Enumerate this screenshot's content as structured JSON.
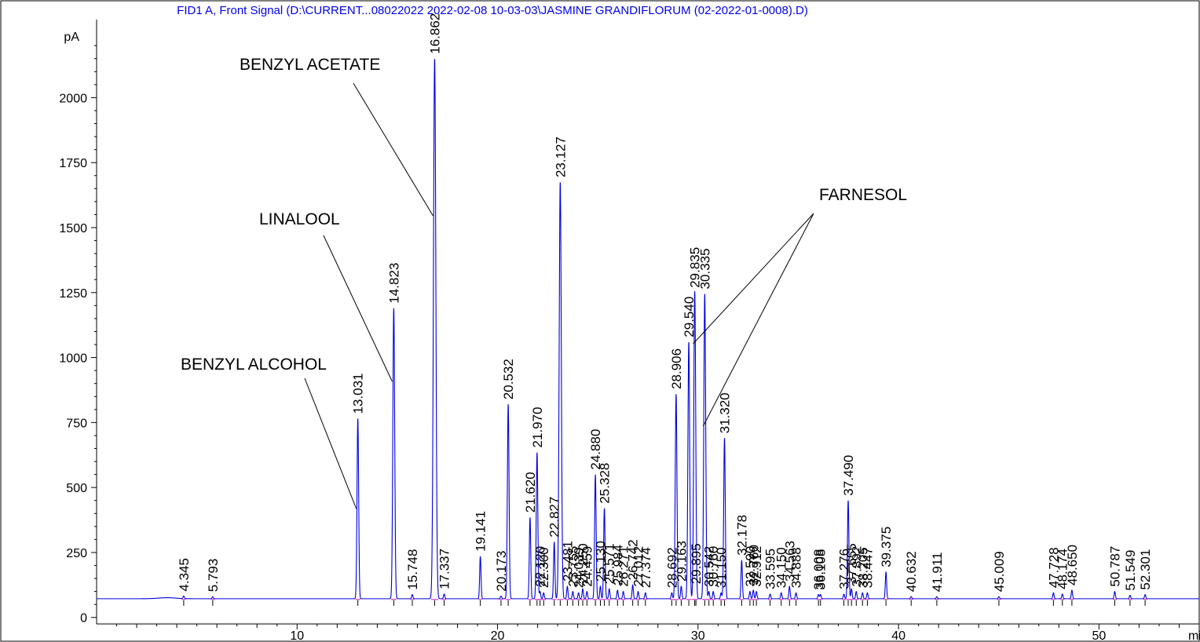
{
  "chart_data": {
    "type": "line",
    "title": "FID1 A, Front Signal (D:\\CURRENT...08022022 2022-02-08 10-03-03\\JASMINE GRANDIFLORUM (02-2022-01-0008).D)",
    "xlabel": "min",
    "ylabel": "pA",
    "xlim": [
      0,
      55
    ],
    "ylim": [
      -25,
      2270
    ],
    "x_ticks": [
      10,
      20,
      30,
      40,
      50
    ],
    "y_ticks": [
      0,
      250,
      500,
      750,
      1000,
      1250,
      1500,
      1750,
      2000
    ],
    "baseline": 72,
    "grid": false,
    "series": [
      {
        "peaks": [
          {
            "label": "4.345",
            "rt": 4.345,
            "height": 82
          },
          {
            "label": "5.793",
            "rt": 5.793,
            "height": 80
          },
          {
            "label": "13.031",
            "rt": 13.031,
            "height": 765
          },
          {
            "label": "14.823",
            "rt": 14.823,
            "height": 1190
          },
          {
            "label": "15.748",
            "rt": 15.748,
            "height": 88
          },
          {
            "label": "16.862",
            "rt": 16.862,
            "height": 2150
          },
          {
            "label": "17.337",
            "rt": 17.337,
            "height": 90
          },
          {
            "label": "19.141",
            "rt": 19.141,
            "height": 235
          },
          {
            "label": "20.173",
            "rt": 20.173,
            "height": 82
          },
          {
            "label": "20.532",
            "rt": 20.532,
            "height": 820
          },
          {
            "label": "21.620",
            "rt": 21.62,
            "height": 385
          },
          {
            "label": "21.970",
            "rt": 21.97,
            "height": 635
          },
          {
            "label": "22.120",
            "rt": 22.12,
            "height": 100
          },
          {
            "label": "22.300",
            "rt": 22.3,
            "height": 95
          },
          {
            "label": "22.827",
            "rt": 22.827,
            "height": 290
          },
          {
            "label": "23.127",
            "rt": 23.127,
            "height": 1675
          },
          {
            "label": "23.481",
            "rt": 23.481,
            "height": 120
          },
          {
            "label": "23.755",
            "rt": 23.755,
            "height": 100
          },
          {
            "label": "24.039",
            "rt": 24.039,
            "height": 95
          },
          {
            "label": "24.250",
            "rt": 24.25,
            "height": 110
          },
          {
            "label": "24.459",
            "rt": 24.459,
            "height": 100
          },
          {
            "label": "24.880",
            "rt": 24.88,
            "height": 550
          },
          {
            "label": "25.130",
            "rt": 25.13,
            "height": 120
          },
          {
            "label": "25.328",
            "rt": 25.328,
            "height": 420
          },
          {
            "label": "25.571",
            "rt": 25.571,
            "height": 110
          },
          {
            "label": "25.984",
            "rt": 25.984,
            "height": 105
          },
          {
            "label": "26.271",
            "rt": 26.271,
            "height": 100
          },
          {
            "label": "26.742",
            "rt": 26.742,
            "height": 125
          },
          {
            "label": "27.012",
            "rt": 27.012,
            "height": 100
          },
          {
            "label": "27.374",
            "rt": 27.374,
            "height": 95
          },
          {
            "label": "28.692",
            "rt": 28.692,
            "height": 95
          },
          {
            "label": "28.906",
            "rt": 28.906,
            "height": 860
          },
          {
            "label": "29.163",
            "rt": 29.163,
            "height": 120
          },
          {
            "label": "29.540",
            "rt": 29.54,
            "height": 1060
          },
          {
            "label": "29.835",
            "rt": 29.835,
            "height": 1250
          },
          {
            "label": "29.895",
            "rt": 29.895,
            "height": 110
          },
          {
            "label": "30.335",
            "rt": 30.335,
            "height": 1245
          },
          {
            "label": "30.542",
            "rt": 30.542,
            "height": 100
          },
          {
            "label": "30.760",
            "rt": 30.76,
            "height": 100
          },
          {
            "label": "31.150",
            "rt": 31.15,
            "height": 95
          },
          {
            "label": "31.320",
            "rt": 31.32,
            "height": 690
          },
          {
            "label": "32.178",
            "rt": 32.178,
            "height": 220
          },
          {
            "label": "32.590",
            "rt": 32.59,
            "height": 100
          },
          {
            "label": "32.760",
            "rt": 32.76,
            "height": 105
          },
          {
            "label": "32.912",
            "rt": 32.912,
            "height": 100
          },
          {
            "label": "33.595",
            "rt": 33.595,
            "height": 90
          },
          {
            "label": "34.150",
            "rt": 34.15,
            "height": 95
          },
          {
            "label": "34.563",
            "rt": 34.563,
            "height": 120
          },
          {
            "label": "34.888",
            "rt": 34.888,
            "height": 95
          },
          {
            "label": "36.008",
            "rt": 36.008,
            "height": 88
          },
          {
            "label": "36.108",
            "rt": 36.108,
            "height": 88
          },
          {
            "label": "37.276",
            "rt": 37.276,
            "height": 90
          },
          {
            "label": "37.490",
            "rt": 37.49,
            "height": 450
          },
          {
            "label": "37.655",
            "rt": 37.655,
            "height": 110
          },
          {
            "label": "37.892",
            "rt": 37.892,
            "height": 100
          },
          {
            "label": "38.205",
            "rt": 38.205,
            "height": 95
          },
          {
            "label": "38.447",
            "rt": 38.447,
            "height": 95
          },
          {
            "label": "39.375",
            "rt": 39.375,
            "height": 175
          },
          {
            "label": "40.632",
            "rt": 40.632,
            "height": 80
          },
          {
            "label": "41.911",
            "rt": 41.911,
            "height": 80
          },
          {
            "label": "45.009",
            "rt": 45.009,
            "height": 80
          },
          {
            "label": "47.728",
            "rt": 47.728,
            "height": 95
          },
          {
            "label": "48.174",
            "rt": 48.174,
            "height": 90
          },
          {
            "label": "48.650",
            "rt": 48.65,
            "height": 105
          },
          {
            "label": "50.787",
            "rt": 50.787,
            "height": 100
          },
          {
            "label": "51.549",
            "rt": 51.549,
            "height": 85
          },
          {
            "label": "52.301",
            "rt": 52.301,
            "height": 88
          }
        ]
      }
    ],
    "annotations": [
      {
        "text": "BENZYL ALCOHOL",
        "points_to": [
          13.031
        ]
      },
      {
        "text": "LINALOOL",
        "points_to": [
          14.823
        ]
      },
      {
        "text": "BENZYL ACETATE",
        "points_to": [
          16.862
        ]
      },
      {
        "text": "FARNESOL",
        "points_to": [
          29.835,
          30.335
        ]
      }
    ],
    "colors": {
      "signal": "#0000dd",
      "integration": "#cc00cc",
      "title": "#0000ee",
      "axis": "#000000"
    }
  }
}
